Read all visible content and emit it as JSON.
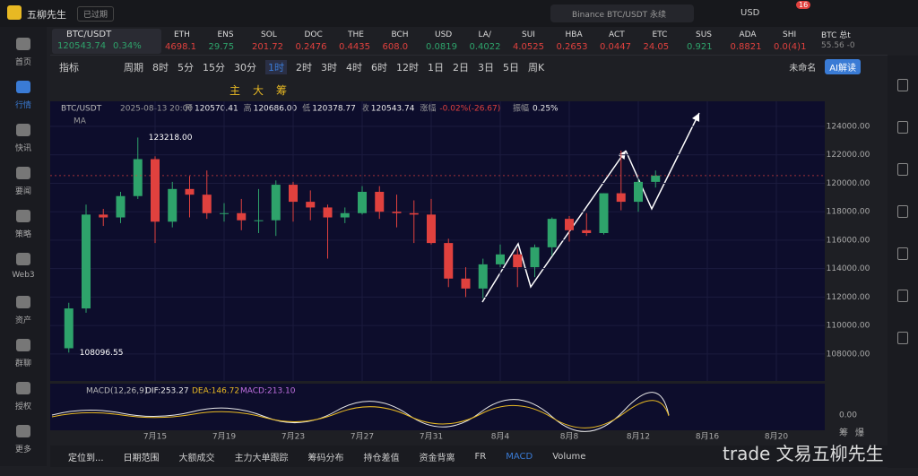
{
  "topbar": {
    "app": "五柳先生",
    "status": "已过期",
    "search": "Binance BTC/USDT 永续",
    "currency": "USD",
    "badge": "16"
  },
  "tickers": [
    {
      "name": "ETH",
      "price": "4698.1",
      "color": "#e0413e"
    },
    {
      "name": "ENS",
      "price": "29.75",
      "color": "#2ea36b"
    },
    {
      "name": "SOL",
      "price": "201.72",
      "color": "#e0413e"
    },
    {
      "name": "DOC",
      "price": "0.2476",
      "color": "#e0413e"
    },
    {
      "name": "THE",
      "price": "0.4435",
      "color": "#e0413e"
    },
    {
      "name": "BCH",
      "price": "608.0",
      "color": "#e0413e"
    },
    {
      "name": "USD",
      "price": "0.0819",
      "color": "#2ea36b"
    },
    {
      "name": "LA/",
      "price": "0.4022",
      "color": "#2ea36b"
    },
    {
      "name": "SUI",
      "price": "4.0525",
      "color": "#e0413e"
    },
    {
      "name": "HBA",
      "price": "0.2653",
      "color": "#e0413e"
    },
    {
      "name": "ACT",
      "price": "0.0447",
      "color": "#e0413e"
    },
    {
      "name": "ETC",
      "price": "24.05",
      "color": "#e0413e"
    },
    {
      "name": "SUS",
      "price": "0.921",
      "color": "#2ea36b"
    },
    {
      "name": "ADA",
      "price": "0.8821",
      "color": "#e0413e"
    },
    {
      "name": "SHI",
      "price": "0.0(4)1",
      "color": "#e0413e"
    }
  ],
  "main_ticker": {
    "name": "BTC/USDT",
    "price": "120543.74",
    "change": "0.34%"
  },
  "side_ticker": {
    "name": "BTC 总t",
    "price": "55.56 -0"
  },
  "sidebar": [
    "首页",
    "行情",
    "快讯",
    "要闻",
    "策略",
    "Web3",
    "资产",
    "群聊",
    "授权",
    "更多"
  ],
  "toolbar": {
    "indicator": "指标",
    "period": "周期",
    "intervals": [
      "8时",
      "5分",
      "15分",
      "30分",
      "1时",
      "2时",
      "3时",
      "4时",
      "6时",
      "12时",
      "1日",
      "2日",
      "3日",
      "5日",
      "周K"
    ],
    "layout_name": "未命名",
    "ai": "AI解读"
  },
  "draw_tools": [
    "主",
    "大",
    "筹"
  ],
  "chart": {
    "symbol": "BTC/USDT",
    "time": "2025-08-13 20:00",
    "fields": [
      {
        "label": "开",
        "value": "120570.41"
      },
      {
        "label": "高",
        "value": "120686.00"
      },
      {
        "label": "低",
        "value": "120378.77"
      },
      {
        "label": "收",
        "value": "120543.74"
      },
      {
        "label": "涨幅",
        "value": "-0.02%(-26.67)"
      },
      {
        "label": "振幅",
        "value": "0.25%"
      }
    ],
    "ma": "MA",
    "high_label": "123218.00",
    "low_label": "108096.55",
    "ylim": [
      106100,
      125450
    ],
    "yticks": [
      {
        "value": 108000,
        "label": "108000.00"
      },
      {
        "value": 110000,
        "label": "110000.00"
      },
      {
        "value": 112000,
        "label": "112000.00"
      },
      {
        "value": 114000,
        "label": "114000.00"
      },
      {
        "value": 116000,
        "label": "116000.00"
      },
      {
        "value": 118000,
        "label": "118000.00"
      },
      {
        "value": 120000,
        "label": "120000.00"
      },
      {
        "value": 122000,
        "label": "122000.00"
      },
      {
        "value": 124000,
        "label": "124000.00"
      }
    ],
    "xticks": [
      "7月15",
      "7月19",
      "7月23",
      "7月27",
      "7月31",
      "8月4",
      "8月8",
      "8月12",
      "8月16",
      "8月20"
    ],
    "up_color": "#2ea36b",
    "down_color": "#e0413e",
    "candles": [
      {
        "o": 108400,
        "h": 111600,
        "l": 108096.55,
        "c": 111200
      },
      {
        "o": 111200,
        "h": 118500,
        "l": 110900,
        "c": 117800
      },
      {
        "o": 117800,
        "h": 118200,
        "l": 117000,
        "c": 117600
      },
      {
        "o": 117600,
        "h": 119400,
        "l": 117200,
        "c": 119100
      },
      {
        "o": 119100,
        "h": 123218,
        "l": 118900,
        "c": 121700
      },
      {
        "o": 121700,
        "h": 121900,
        "l": 115800,
        "c": 117300
      },
      {
        "o": 117300,
        "h": 120100,
        "l": 116900,
        "c": 119600
      },
      {
        "o": 119600,
        "h": 120500,
        "l": 117600,
        "c": 119200
      },
      {
        "o": 119200,
        "h": 120900,
        "l": 117500,
        "c": 117900
      },
      {
        "o": 117900,
        "h": 118600,
        "l": 117300,
        "c": 117900
      },
      {
        "o": 117900,
        "h": 118900,
        "l": 116700,
        "c": 117400
      },
      {
        "o": 117400,
        "h": 119600,
        "l": 116500,
        "c": 117400
      },
      {
        "o": 117400,
        "h": 120200,
        "l": 116300,
        "c": 119900
      },
      {
        "o": 119900,
        "h": 120100,
        "l": 117300,
        "c": 118700
      },
      {
        "o": 118700,
        "h": 119500,
        "l": 117400,
        "c": 118300
      },
      {
        "o": 118300,
        "h": 118500,
        "l": 114700,
        "c": 117600
      },
      {
        "o": 117600,
        "h": 118300,
        "l": 117200,
        "c": 117900
      },
      {
        "o": 117900,
        "h": 119800,
        "l": 117800,
        "c": 119400
      },
      {
        "o": 119400,
        "h": 119800,
        "l": 117500,
        "c": 118000
      },
      {
        "o": 118000,
        "h": 119200,
        "l": 116900,
        "c": 117900
      },
      {
        "o": 117900,
        "h": 118800,
        "l": 115800,
        "c": 117800
      },
      {
        "o": 117800,
        "h": 118900,
        "l": 115700,
        "c": 115800
      },
      {
        "o": 115800,
        "h": 116100,
        "l": 112700,
        "c": 113300
      },
      {
        "o": 113300,
        "h": 114100,
        "l": 112000,
        "c": 112600
      },
      {
        "o": 112600,
        "h": 114700,
        "l": 111900,
        "c": 114300
      },
      {
        "o": 114300,
        "h": 115700,
        "l": 114100,
        "c": 115000
      },
      {
        "o": 115000,
        "h": 115400,
        "l": 112700,
        "c": 114100
      },
      {
        "o": 114100,
        "h": 115700,
        "l": 113400,
        "c": 115500
      },
      {
        "o": 115500,
        "h": 117600,
        "l": 114900,
        "c": 117500
      },
      {
        "o": 117500,
        "h": 117700,
        "l": 115900,
        "c": 116700
      },
      {
        "o": 116700,
        "h": 117900,
        "l": 116300,
        "c": 116500
      },
      {
        "o": 116500,
        "h": 119300,
        "l": 116400,
        "c": 119300
      },
      {
        "o": 119300,
        "h": 122300,
        "l": 118100,
        "c": 118700
      },
      {
        "o": 118700,
        "h": 120300,
        "l": 118000,
        "c": 120100
      },
      {
        "o": 120100,
        "h": 120900,
        "l": 119700,
        "c": 120543.74
      }
    ],
    "macd": {
      "title": "MACD(12,26,9)",
      "dif": "DIF:253.27",
      "dea": "DEA:146.72",
      "macd": "MACD:213.10",
      "zero": "0.00"
    },
    "axis_tools": [
      "筹",
      "爆"
    ]
  },
  "bottom_tabs": [
    "定位到...",
    "日期范围",
    "大额成交",
    "主力大单跟踪",
    "筹码分布",
    "持仓差值",
    "资金背离",
    "FR",
    "MACD",
    "Volume"
  ],
  "watermark": "trade 文易五柳先生"
}
